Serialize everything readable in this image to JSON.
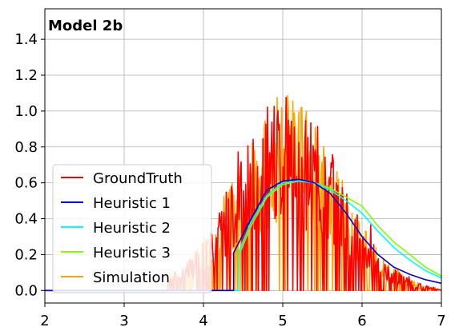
{
  "chart_data": {
    "type": "line",
    "title": "Model 2b",
    "xlabel": "",
    "ylabel": "",
    "xlim": [
      2,
      7
    ],
    "ylim": [
      -0.07,
      1.57
    ],
    "xticks": [
      "2",
      "3",
      "4",
      "5",
      "6",
      "7"
    ],
    "yticks": [
      "0.0",
      "0.2",
      "0.4",
      "0.6",
      "0.8",
      "1.0",
      "1.2",
      "1.4"
    ],
    "grid": true,
    "legend_position": "lower-left",
    "series": [
      {
        "name": "GroundTruth",
        "color": "#ff0000",
        "style": "noisy",
        "noise_seed": 7,
        "peak": 1.5
      },
      {
        "name": "Heuristic 1",
        "color": "#0000cc",
        "x": [
          2.0,
          4.38,
          4.38,
          4.6,
          4.8,
          5.0,
          5.2,
          5.4,
          5.6,
          5.8,
          6.0,
          6.2,
          6.4,
          6.6,
          6.8,
          7.0
        ],
        "y": [
          0.0,
          0.0,
          0.21,
          0.4,
          0.56,
          0.61,
          0.62,
          0.6,
          0.54,
          0.43,
          0.3,
          0.2,
          0.13,
          0.09,
          0.06,
          0.04
        ]
      },
      {
        "name": "Heuristic 2",
        "color": "#00ffff",
        "x": [
          2.0,
          4.45,
          4.45,
          4.6,
          4.8,
          5.0,
          5.2,
          5.4,
          5.6,
          5.8,
          6.0,
          6.2,
          6.4,
          6.6,
          6.8,
          7.0
        ],
        "y": [
          0.0,
          0.0,
          0.22,
          0.38,
          0.53,
          0.6,
          0.61,
          0.6,
          0.56,
          0.5,
          0.43,
          0.33,
          0.24,
          0.17,
          0.11,
          0.07
        ]
      },
      {
        "name": "Heuristic 3",
        "color": "#7fff00",
        "x": [
          2.0,
          4.45,
          4.45,
          4.6,
          4.8,
          5.0,
          5.2,
          5.4,
          5.6,
          5.8,
          6.0,
          6.2,
          6.4,
          6.6,
          6.8,
          7.0
        ],
        "y": [
          0.0,
          0.0,
          0.2,
          0.36,
          0.52,
          0.59,
          0.61,
          0.6,
          0.57,
          0.52,
          0.47,
          0.36,
          0.27,
          0.2,
          0.13,
          0.08
        ]
      },
      {
        "name": "Simulation",
        "color": "#ffa500",
        "style": "noisy",
        "noise_seed": 3,
        "peak": 1.48
      }
    ]
  }
}
